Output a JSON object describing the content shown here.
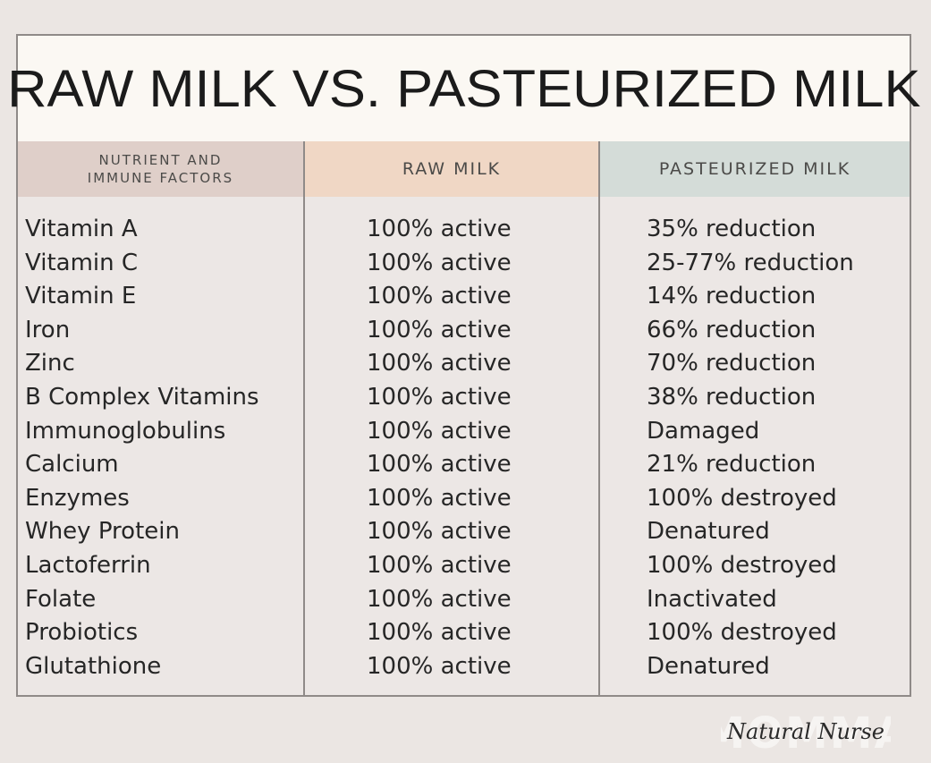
{
  "title": "RAW MILK VS. PASTEURIZED MILK",
  "headers": {
    "col1": "NUTRIENT AND\nIMMUNE FACTORS",
    "col2": "RAW MILK",
    "col3": "PASTEURIZED MILK"
  },
  "rows": [
    {
      "nutrient": "Vitamin A",
      "raw": "100% active",
      "pasteurized": "35% reduction"
    },
    {
      "nutrient": "Vitamin C",
      "raw": "100% active",
      "pasteurized": "25-77% reduction"
    },
    {
      "nutrient": "Vitamin E",
      "raw": "100% active",
      "pasteurized": "14% reduction"
    },
    {
      "nutrient": "Iron",
      "raw": "100% active",
      "pasteurized": "66% reduction"
    },
    {
      "nutrient": "Zinc",
      "raw": "100% active",
      "pasteurized": "70% reduction"
    },
    {
      "nutrient": "B Complex Vitamins",
      "raw": "100% active",
      "pasteurized": "38% reduction"
    },
    {
      "nutrient": "Immunoglobulins",
      "raw": "100% active",
      "pasteurized": "Damaged"
    },
    {
      "nutrient": "Calcium",
      "raw": "100% active",
      "pasteurized": "21% reduction"
    },
    {
      "nutrient": "Enzymes",
      "raw": "100% active",
      "pasteurized": "100% destroyed"
    },
    {
      "nutrient": "Whey Protein",
      "raw": "100% active",
      "pasteurized": "Denatured"
    },
    {
      "nutrient": "Lactoferrin",
      "raw": "100% active",
      "pasteurized": "100% destroyed"
    },
    {
      "nutrient": "Folate",
      "raw": "100% active",
      "pasteurized": "Inactivated"
    },
    {
      "nutrient": "Probiotics",
      "raw": "100% active",
      "pasteurized": "100% destroyed"
    },
    {
      "nutrient": "Glutathione",
      "raw": "100% active",
      "pasteurized": "Denatured"
    }
  ],
  "watermark": {
    "script_text": "Natural Nurse",
    "block_text": "MOMMA"
  }
}
